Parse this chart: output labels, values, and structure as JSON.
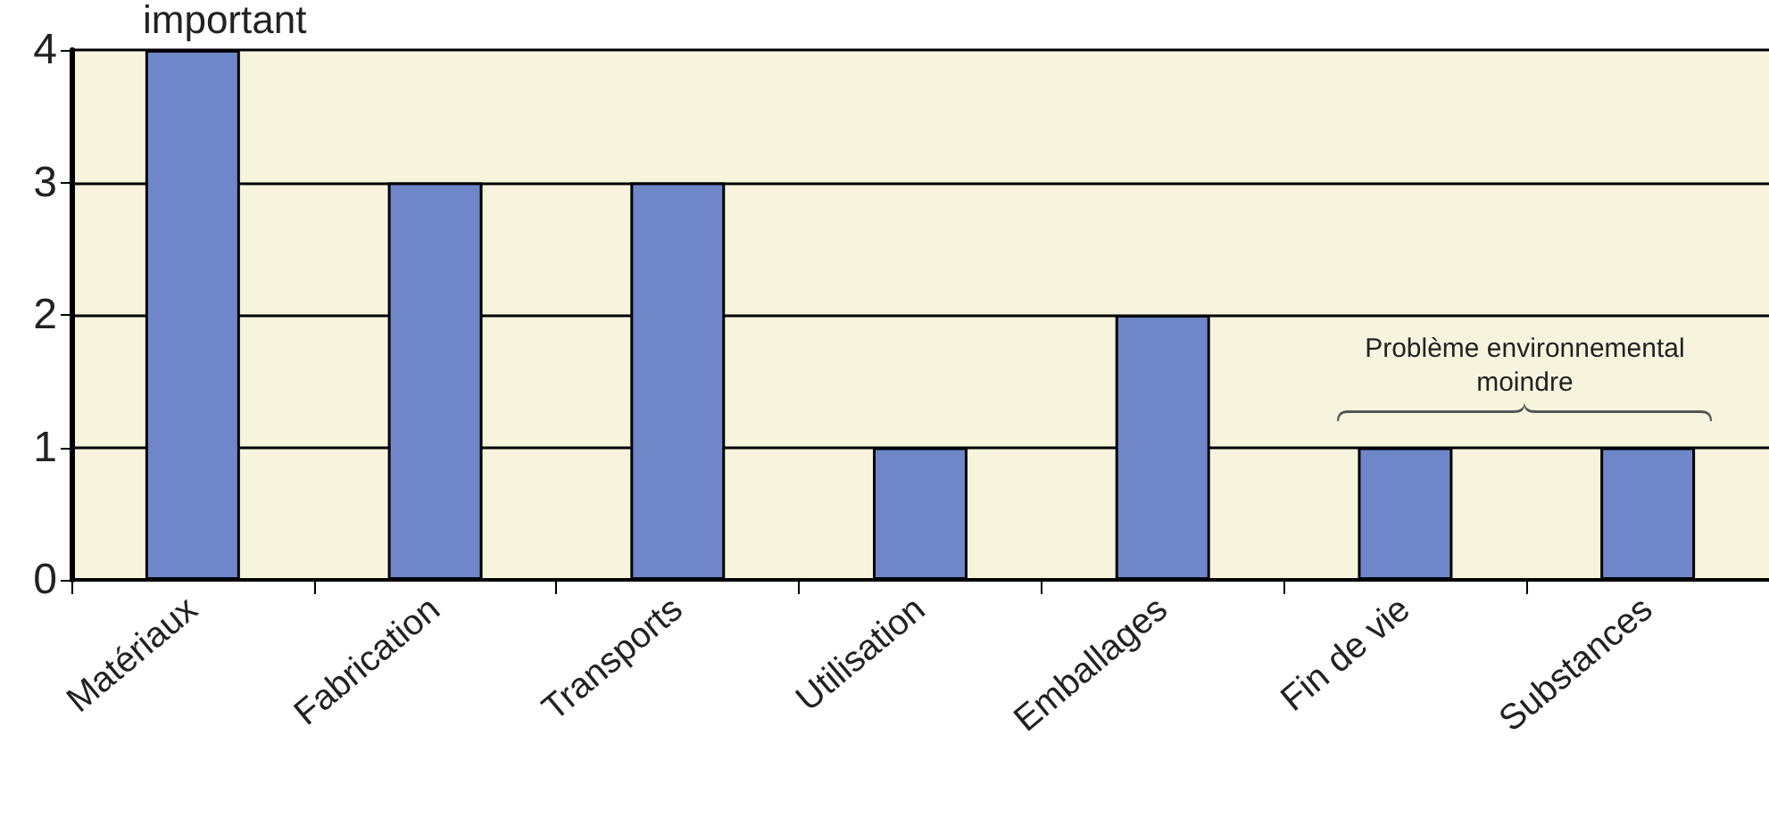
{
  "chart_data": {
    "type": "bar",
    "categories": [
      "Matériaux",
      "Fabrication",
      "Transports",
      "Utilisation",
      "Emballages",
      "Fin de vie",
      "Substances"
    ],
    "values": [
      4,
      3,
      3,
      1,
      2,
      1,
      1
    ],
    "color": "#6f87c9",
    "ylim": [
      0,
      4
    ],
    "yticks": [
      0,
      1,
      2,
      3,
      4
    ],
    "grid": "y",
    "annotations": [
      "important",
      "Problème environnemental moindre"
    ]
  }
}
